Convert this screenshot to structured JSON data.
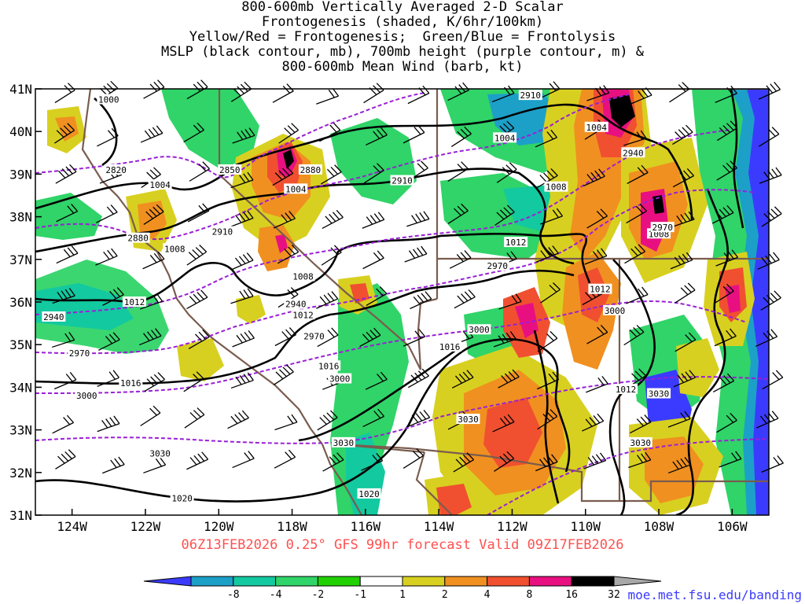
{
  "title_lines": [
    "800-600mb Vertically Averaged 2-D Scalar",
    "Frontogenesis (shaded, K/6hr/100km)",
    "Yellow/Red = Frontogenesis;  Green/Blue = Frontolysis",
    "MSLP (black contour, mb), 700mb height (purple contour, m) &",
    "800-600mb Mean Wind (barb, kt)"
  ],
  "footer": "06Z13FEB2026 0.25° GFS 99hr forecast Valid 09Z17FEB2026",
  "source": "moe.met.fsu.edu/banding",
  "map": {
    "lon_range": [
      -125,
      -105
    ],
    "lat_range": [
      31,
      41
    ],
    "lon_ticks": [
      {
        "lon": -124,
        "label": "124W"
      },
      {
        "lon": -122,
        "label": "122W"
      },
      {
        "lon": -120,
        "label": "120W"
      },
      {
        "lon": -118,
        "label": "118W"
      },
      {
        "lon": -116,
        "label": "116W"
      },
      {
        "lon": -114,
        "label": "114W"
      },
      {
        "lon": -112,
        "label": "112W"
      },
      {
        "lon": -110,
        "label": "110W"
      },
      {
        "lon": -108,
        "label": "108W"
      },
      {
        "lon": -106,
        "label": "106W"
      }
    ],
    "lat_ticks": [
      {
        "lat": 41,
        "label": "41N"
      },
      {
        "lat": 40,
        "label": "40N"
      },
      {
        "lat": 39,
        "label": "39N"
      },
      {
        "lat": 38,
        "label": "38N"
      },
      {
        "lat": 37,
        "label": "37N"
      },
      {
        "lat": 36,
        "label": "36N"
      },
      {
        "lat": 35,
        "label": "35N"
      },
      {
        "lat": 34,
        "label": "34N"
      },
      {
        "lat": 33,
        "label": "33N"
      },
      {
        "lat": 32,
        "label": "32N"
      },
      {
        "lat": 31,
        "label": "31N"
      }
    ],
    "mslp_labels": [
      {
        "lon": -123.0,
        "lat": 40.75,
        "text": "1000"
      },
      {
        "lon": -121.6,
        "lat": 38.75,
        "text": "1004"
      },
      {
        "lon": -117.9,
        "lat": 38.65,
        "text": "1004"
      },
      {
        "lon": -112.2,
        "lat": 39.85,
        "text": "1004"
      },
      {
        "lon": -109.7,
        "lat": 40.1,
        "text": "1004"
      },
      {
        "lon": -121.2,
        "lat": 37.25,
        "text": "1008"
      },
      {
        "lon": -117.7,
        "lat": 36.6,
        "text": "1008"
      },
      {
        "lon": -110.8,
        "lat": 38.7,
        "text": "1008"
      },
      {
        "lon": -108.0,
        "lat": 37.6,
        "text": "1008"
      },
      {
        "lon": -122.3,
        "lat": 36.0,
        "text": "1012"
      },
      {
        "lon": -117.7,
        "lat": 35.7,
        "text": "1012"
      },
      {
        "lon": -111.9,
        "lat": 37.4,
        "text": "1012"
      },
      {
        "lon": -109.6,
        "lat": 36.3,
        "text": "1012"
      },
      {
        "lon": -108.9,
        "lat": 33.95,
        "text": "1012"
      },
      {
        "lon": -113.7,
        "lat": 34.95,
        "text": "1016"
      },
      {
        "lon": -117.0,
        "lat": 34.5,
        "text": "1016"
      },
      {
        "lon": -122.4,
        "lat": 34.1,
        "text": "1016"
      },
      {
        "lon": -121.0,
        "lat": 31.4,
        "text": "1020"
      },
      {
        "lon": -115.9,
        "lat": 31.5,
        "text": "1020"
      }
    ],
    "height_labels": [
      {
        "lon": -111.5,
        "lat": 40.85,
        "text": "2910"
      },
      {
        "lon": -122.8,
        "lat": 39.1,
        "text": "2820"
      },
      {
        "lon": -119.7,
        "lat": 39.1,
        "text": "2850"
      },
      {
        "lon": -117.5,
        "lat": 39.1,
        "text": "2880"
      },
      {
        "lon": -115.0,
        "lat": 38.85,
        "text": "2910"
      },
      {
        "lon": -108.7,
        "lat": 39.5,
        "text": "2940"
      },
      {
        "lon": -107.9,
        "lat": 37.75,
        "text": "2970"
      },
      {
        "lon": -122.2,
        "lat": 37.5,
        "text": "2880"
      },
      {
        "lon": -119.9,
        "lat": 37.65,
        "text": "2910"
      },
      {
        "lon": -117.9,
        "lat": 35.95,
        "text": "2940"
      },
      {
        "lon": -124.5,
        "lat": 35.65,
        "text": "2940"
      },
      {
        "lon": -112.4,
        "lat": 36.85,
        "text": "2970"
      },
      {
        "lon": -117.4,
        "lat": 35.2,
        "text": "2970"
      },
      {
        "lon": -123.8,
        "lat": 34.8,
        "text": "2970"
      },
      {
        "lon": -109.2,
        "lat": 35.8,
        "text": "3000"
      },
      {
        "lon": -112.9,
        "lat": 35.35,
        "text": "3000"
      },
      {
        "lon": -116.7,
        "lat": 34.2,
        "text": "3000"
      },
      {
        "lon": -123.6,
        "lat": 33.8,
        "text": "3000"
      },
      {
        "lon": -113.2,
        "lat": 33.25,
        "text": "3030"
      },
      {
        "lon": -108.0,
        "lat": 33.85,
        "text": "3030"
      },
      {
        "lon": -108.5,
        "lat": 32.7,
        "text": "3030"
      },
      {
        "lon": -121.6,
        "lat": 32.45,
        "text": "3030"
      },
      {
        "lon": -116.6,
        "lat": 32.7,
        "text": "3030"
      }
    ]
  },
  "colorbar": {
    "tick_labels": [
      "-8",
      "-4",
      "-2",
      "-1",
      "1",
      "2",
      "4",
      "8",
      "16",
      "32"
    ],
    "colors": [
      "#3b3bff",
      "#1ca0c8",
      "#13c9a0",
      "#30d468",
      "#20d000",
      "#ffffff",
      "#d8d020",
      "#f09020",
      "#f05030",
      "#e81080",
      "#000000",
      "#a8a8a8"
    ]
  },
  "colors": {
    "mslp_contour": "#000000",
    "height_contour": "#9a1fd6",
    "state_border": "#7a5c4e",
    "footer": "#ff5050",
    "source": "#3a3aff"
  }
}
